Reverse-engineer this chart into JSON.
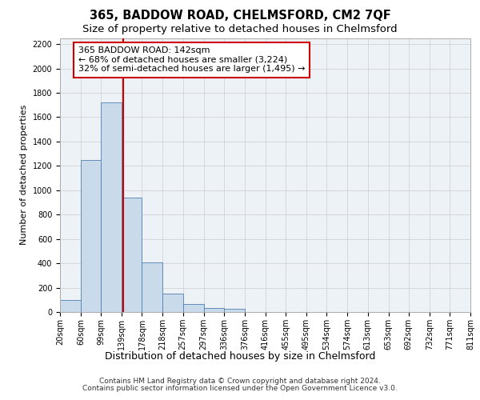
{
  "title1": "365, BADDOW ROAD, CHELMSFORD, CM2 7QF",
  "title2": "Size of property relative to detached houses in Chelmsford",
  "xlabel": "Distribution of detached houses by size in Chelmsford",
  "ylabel": "Number of detached properties",
  "footer1": "Contains HM Land Registry data © Crown copyright and database right 2024.",
  "footer2": "Contains public sector information licensed under the Open Government Licence v3.0.",
  "annotation_line1": "365 BADDOW ROAD: 142sqm",
  "annotation_line2": "← 68% of detached houses are smaller (3,224)",
  "annotation_line3": "32% of semi-detached houses are larger (1,495) →",
  "bar_color": "#c9daea",
  "bar_edge_color": "#4f7faf",
  "vline_color": "#cc0000",
  "vline_x": 142,
  "bin_edges": [
    20,
    60,
    99,
    139,
    178,
    218,
    257,
    297,
    336,
    376,
    416,
    455,
    495,
    534,
    574,
    613,
    653,
    692,
    732,
    771,
    811
  ],
  "bar_heights": [
    100,
    1250,
    1720,
    940,
    410,
    150,
    65,
    35,
    25,
    0,
    0,
    0,
    0,
    0,
    0,
    0,
    0,
    0,
    0,
    0
  ],
  "ylim": [
    0,
    2250
  ],
  "yticks": [
    0,
    200,
    400,
    600,
    800,
    1000,
    1200,
    1400,
    1600,
    1800,
    2000,
    2200
  ],
  "grid_color": "#cccccc",
  "bg_color": "#edf2f7",
  "title_fontsize": 10.5,
  "subtitle_fontsize": 9.5,
  "annotation_fontsize": 8.0,
  "ylabel_fontsize": 8,
  "tick_fontsize": 7,
  "footer_fontsize": 6.5,
  "xlabel_fontsize": 9
}
